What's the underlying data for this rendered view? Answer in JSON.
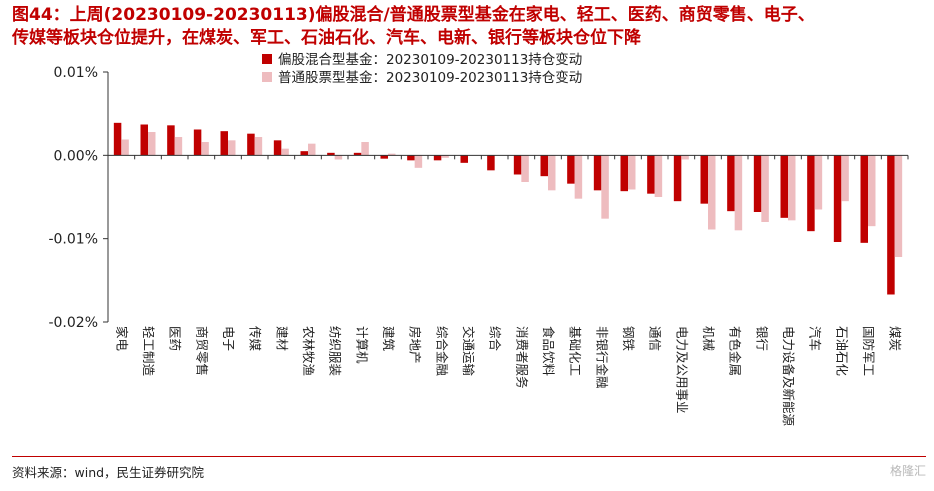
{
  "figure": {
    "title_line1": "图44：上周(20230109-20230113)偏股混合/普通股票型基金在家电、轻工、医药、商贸零售、电子、",
    "title_line2": "传媒等板块仓位提升，在煤炭、军工、石油石化、汽车、电新、银行等板块仓位下降",
    "source": "资料来源：wind，民生证券研究院",
    "watermark": "格隆汇"
  },
  "colors": {
    "title": "#c00000",
    "series1": "#c00000",
    "series2": "#eebcbf"
  },
  "chart_data": {
    "type": "bar",
    "categories": [
      "家电",
      "轻工制造",
      "医药",
      "商贸零售",
      "电子",
      "传媒",
      "建材",
      "农林牧渔",
      "纺织服装",
      "计算机",
      "建筑",
      "房地产",
      "综合金融",
      "交通运输",
      "综合",
      "消费者服务",
      "食品饮料",
      "基础化工",
      "非银行金融",
      "钢铁",
      "通信",
      "电力及公用事业",
      "机械",
      "有色金属",
      "银行",
      "电力设备及新能源",
      "汽车",
      "石油石化",
      "国防军工",
      "煤炭"
    ],
    "series": [
      {
        "name": "偏股混合型基金：20230109-20230113持仓变动",
        "values": [
          0.0039,
          0.0037,
          0.0036,
          0.0031,
          0.0029,
          0.0026,
          0.0018,
          0.0005,
          0.0003,
          0.0003,
          -0.0004,
          -0.0006,
          -0.0006,
          -0.0009,
          -0.0018,
          -0.0023,
          -0.0025,
          -0.0034,
          -0.0042,
          -0.0043,
          -0.0046,
          -0.0055,
          -0.0058,
          -0.0067,
          -0.0068,
          -0.0075,
          -0.0091,
          -0.0104,
          -0.0105,
          -0.0167
        ]
      },
      {
        "name": "普通股票型基金：20230109-20230113持仓变动",
        "values": [
          0.0019,
          0.0028,
          0.0022,
          0.0016,
          0.0018,
          0.0022,
          0.0008,
          0.0014,
          -0.0005,
          0.0016,
          0.0002,
          -0.0015,
          -0.0003,
          0.0,
          0.0,
          -0.0032,
          -0.0042,
          -0.0052,
          -0.0076,
          -0.0041,
          -0.005,
          -0.0005,
          -0.0089,
          -0.009,
          -0.008,
          -0.0078,
          -0.0065,
          -0.0055,
          -0.0085,
          -0.0122
        ]
      }
    ],
    "ylim": [
      -0.02,
      0.01
    ],
    "yticks": [
      "0.01%",
      "0.00%",
      "-0.01%",
      "-0.02%"
    ],
    "ytick_values": [
      0.01,
      0.0,
      -0.01,
      -0.02
    ],
    "legend_position": "top-center"
  }
}
